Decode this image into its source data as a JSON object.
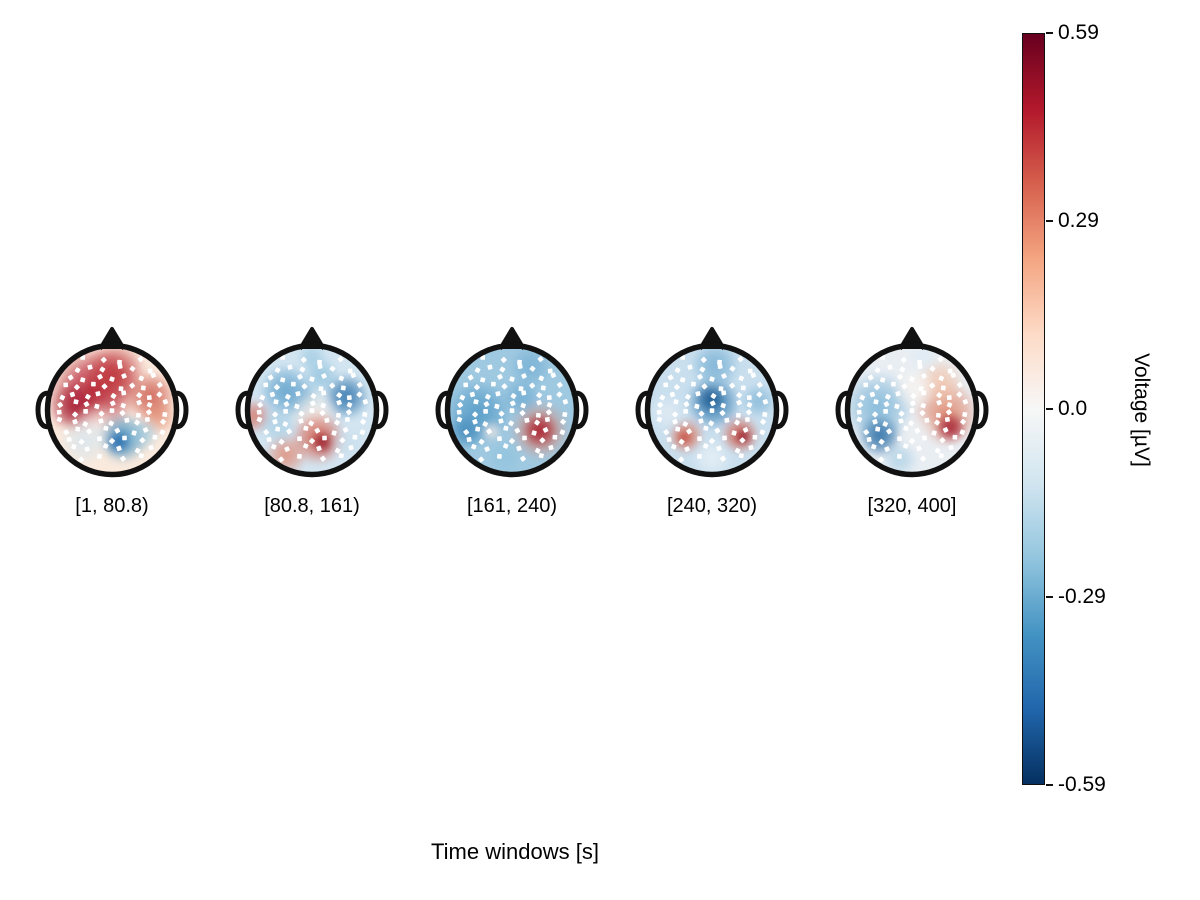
{
  "figure": {
    "background": "#ffffff"
  },
  "chart_data": {
    "type": "heatmap",
    "subtype": "eeg_topomap_time_window_sequence",
    "title": "",
    "xlabel": "Time windows [s]",
    "legend_position": "right-colorbar",
    "time_windows": [
      "[1, 80.8)",
      "[80.8, 161)",
      "[161, 240)",
      "[240, 320)",
      "[320, 400]"
    ],
    "colorbar": {
      "label": "Voltage [µV]",
      "ticks": [
        "0.59",
        "0.29",
        "0.0",
        "-0.29",
        "-0.59"
      ],
      "vmax": 0.59,
      "vmin": -0.59,
      "colormap": "RdBu_r",
      "gradient_stops_top_to_bottom": [
        "#67001f",
        "#b2182b",
        "#d6604d",
        "#f4a582",
        "#fddbc7",
        "#f7f7f7",
        "#d1e5f0",
        "#92c5de",
        "#4393c3",
        "#2166ac",
        "#053061"
      ]
    },
    "head": {
      "outline_color": "#111111",
      "sensor_marker_color": "#ffffff"
    },
    "sensor_rows": [
      {
        "y": -0.85,
        "n": 4
      },
      {
        "y": -0.7,
        "n": 6
      },
      {
        "y": -0.55,
        "n": 7
      },
      {
        "y": -0.4,
        "n": 8
      },
      {
        "y": -0.25,
        "n": 9
      },
      {
        "y": -0.1,
        "n": 9
      },
      {
        "y": 0.05,
        "n": 9
      },
      {
        "y": 0.2,
        "n": 9
      },
      {
        "y": 0.35,
        "n": 8
      },
      {
        "y": 0.5,
        "n": 7
      },
      {
        "y": 0.65,
        "n": 6
      },
      {
        "y": 0.8,
        "n": 4
      }
    ],
    "maps": [
      {
        "label": "[1, 80.8)",
        "pattern": "strong positive voltage (red) over frontal and left fronto-central areas; negative patch (blue) centro-parietal right; pale posterior rim",
        "base": "#faeadd",
        "blobs": [
          {
            "x": -0.3,
            "y": -0.3,
            "r": 0.72,
            "c": "#b2182b",
            "a": 0.92
          },
          {
            "x": -0.62,
            "y": -0.05,
            "r": 0.42,
            "c": "#9e0e26",
            "a": 0.75
          },
          {
            "x": 0.05,
            "y": -0.6,
            "r": 0.5,
            "c": "#bb2a31",
            "a": 0.85
          },
          {
            "x": 0.62,
            "y": -0.22,
            "r": 0.42,
            "c": "#c74a3d",
            "a": 0.8
          },
          {
            "x": 0.75,
            "y": 0.1,
            "r": 0.3,
            "c": "#e08266",
            "a": 0.7
          },
          {
            "x": -0.25,
            "y": 0.28,
            "r": 0.38,
            "c": "#f9f1ea",
            "a": 0.85
          },
          {
            "x": 0.18,
            "y": 0.45,
            "r": 0.42,
            "c": "#4393c3",
            "a": 0.9
          },
          {
            "x": 0.1,
            "y": 0.52,
            "r": 0.22,
            "c": "#2166ac",
            "a": 0.85
          },
          {
            "x": 0.5,
            "y": 0.38,
            "r": 0.28,
            "c": "#92c5de",
            "a": 0.7
          },
          {
            "x": -0.45,
            "y": 0.5,
            "r": 0.4,
            "c": "#d1e5f0",
            "a": 0.75
          }
        ]
      },
      {
        "label": "[80.8, 161)",
        "pattern": "mostly light negative (blue) frontally and right temporal; focal positive (red) centro-parietal with dark core; warm left rim and occipital left",
        "base": "#d3e5f1",
        "blobs": [
          {
            "x": -0.42,
            "y": -0.3,
            "r": 0.45,
            "c": "#5fa1cb",
            "a": 0.9
          },
          {
            "x": -0.15,
            "y": -0.15,
            "r": 0.3,
            "c": "#74aed3",
            "a": 0.8
          },
          {
            "x": 0.55,
            "y": -0.22,
            "r": 0.38,
            "c": "#2e74ac",
            "a": 0.9
          },
          {
            "x": 0.15,
            "y": -0.55,
            "r": 0.3,
            "c": "#8fc2dd",
            "a": 0.85
          },
          {
            "x": 0.0,
            "y": -0.85,
            "r": 0.25,
            "c": "#9cc9e1",
            "a": 0.8
          },
          {
            "x": 0.02,
            "y": 0.05,
            "r": 0.38,
            "c": "#f6efe8",
            "a": 0.9
          },
          {
            "x": 0.1,
            "y": 0.45,
            "r": 0.45,
            "c": "#d6604d",
            "a": 0.88
          },
          {
            "x": 0.17,
            "y": 0.52,
            "r": 0.2,
            "c": "#921226",
            "a": 0.88
          },
          {
            "x": -0.42,
            "y": 0.72,
            "r": 0.35,
            "c": "#e2836a",
            "a": 0.8
          },
          {
            "x": -0.93,
            "y": 0.1,
            "r": 0.28,
            "c": "#d6604d",
            "a": 0.75
          },
          {
            "x": -0.55,
            "y": 0.25,
            "r": 0.32,
            "c": "#a5cde2",
            "a": 0.8
          },
          {
            "x": 0.6,
            "y": 0.55,
            "r": 0.3,
            "c": "#c7ddeb",
            "a": 0.7
          }
        ]
      },
      {
        "label": "[161, 240)",
        "pattern": "broad negative (blue), deepest left hemisphere; strong focal positive (dark red) right parietal; small pale spot left parietal",
        "base": "#9fc9e1",
        "blobs": [
          {
            "x": -0.55,
            "y": 0.05,
            "r": 0.55,
            "c": "#549bc7",
            "a": 0.9
          },
          {
            "x": -0.75,
            "y": 0.35,
            "r": 0.3,
            "c": "#3d86b8",
            "a": 0.8
          },
          {
            "x": 0.15,
            "y": -0.2,
            "r": 0.32,
            "c": "#6fabd2",
            "a": 0.85
          },
          {
            "x": 0.3,
            "y": -0.7,
            "r": 0.35,
            "c": "#74aed3",
            "a": 0.8
          },
          {
            "x": 0.45,
            "y": 0.33,
            "r": 0.5,
            "c": "#e58a6e",
            "a": 0.75
          },
          {
            "x": 0.45,
            "y": 0.33,
            "r": 0.3,
            "c": "#a81c2e",
            "a": 0.95
          },
          {
            "x": -0.33,
            "y": 0.35,
            "r": 0.16,
            "c": "#fbeee6",
            "a": 0.9
          },
          {
            "x": -0.1,
            "y": 0.75,
            "r": 0.3,
            "c": "#8fc2dd",
            "a": 0.7
          }
        ]
      },
      {
        "label": "[240, 320)",
        "pattern": "light negative overall with dark blue fronto-central focus; two positive (red) parietal patches, stronger on the right; pale occipital rim",
        "base": "#c9dfee",
        "blobs": [
          {
            "x": 0.02,
            "y": -0.12,
            "r": 0.45,
            "c": "#3a80b4",
            "a": 0.95
          },
          {
            "x": -0.02,
            "y": -0.18,
            "r": 0.24,
            "c": "#1f5a91",
            "a": 0.9
          },
          {
            "x": 0.05,
            "y": -0.72,
            "r": 0.4,
            "c": "#74aed3",
            "a": 0.85
          },
          {
            "x": -0.42,
            "y": 0.42,
            "r": 0.3,
            "c": "#dd7157",
            "a": 0.88
          },
          {
            "x": -0.45,
            "y": 0.45,
            "r": 0.14,
            "c": "#c03b35",
            "a": 0.8
          },
          {
            "x": 0.45,
            "y": 0.4,
            "r": 0.32,
            "c": "#d6604d",
            "a": 0.9
          },
          {
            "x": 0.5,
            "y": 0.43,
            "r": 0.15,
            "c": "#8c1127",
            "a": 0.92
          },
          {
            "x": 0.0,
            "y": 0.78,
            "r": 0.33,
            "c": "#e9f1f7",
            "a": 0.85
          },
          {
            "x": -0.72,
            "y": 0.05,
            "r": 0.3,
            "c": "#e6eef5",
            "a": 0.75
          },
          {
            "x": 0.75,
            "y": -0.15,
            "r": 0.28,
            "c": "#74aed3",
            "a": 0.7
          }
        ]
      },
      {
        "label": "[320, 400]",
        "pattern": "left hemisphere negative (dark blue lower-left); right hemisphere positive with dark red mid-right focus; pale midline strip",
        "base": "#e9eef3",
        "blobs": [
          {
            "x": -0.55,
            "y": -0.05,
            "r": 0.6,
            "c": "#7db6d8",
            "a": 0.9
          },
          {
            "x": -0.52,
            "y": 0.42,
            "r": 0.36,
            "c": "#2a6da5",
            "a": 0.92
          },
          {
            "x": -0.2,
            "y": 0.8,
            "r": 0.3,
            "c": "#a9cfe4",
            "a": 0.8
          },
          {
            "x": 0.55,
            "y": 0.05,
            "r": 0.55,
            "c": "#e08266",
            "a": 0.85
          },
          {
            "x": 0.62,
            "y": 0.28,
            "r": 0.26,
            "c": "#a41c2e",
            "a": 0.95
          },
          {
            "x": 0.45,
            "y": -0.45,
            "r": 0.4,
            "c": "#f3c0a4",
            "a": 0.8
          },
          {
            "x": 0.05,
            "y": -0.35,
            "r": 0.35,
            "c": "#f8f4f0",
            "a": 0.9
          },
          {
            "x": 0.1,
            "y": 0.35,
            "r": 0.3,
            "c": "#eef0f2",
            "a": 0.8
          },
          {
            "x": 0.2,
            "y": -0.85,
            "r": 0.25,
            "c": "#dcebf4",
            "a": 0.8
          }
        ]
      }
    ]
  }
}
